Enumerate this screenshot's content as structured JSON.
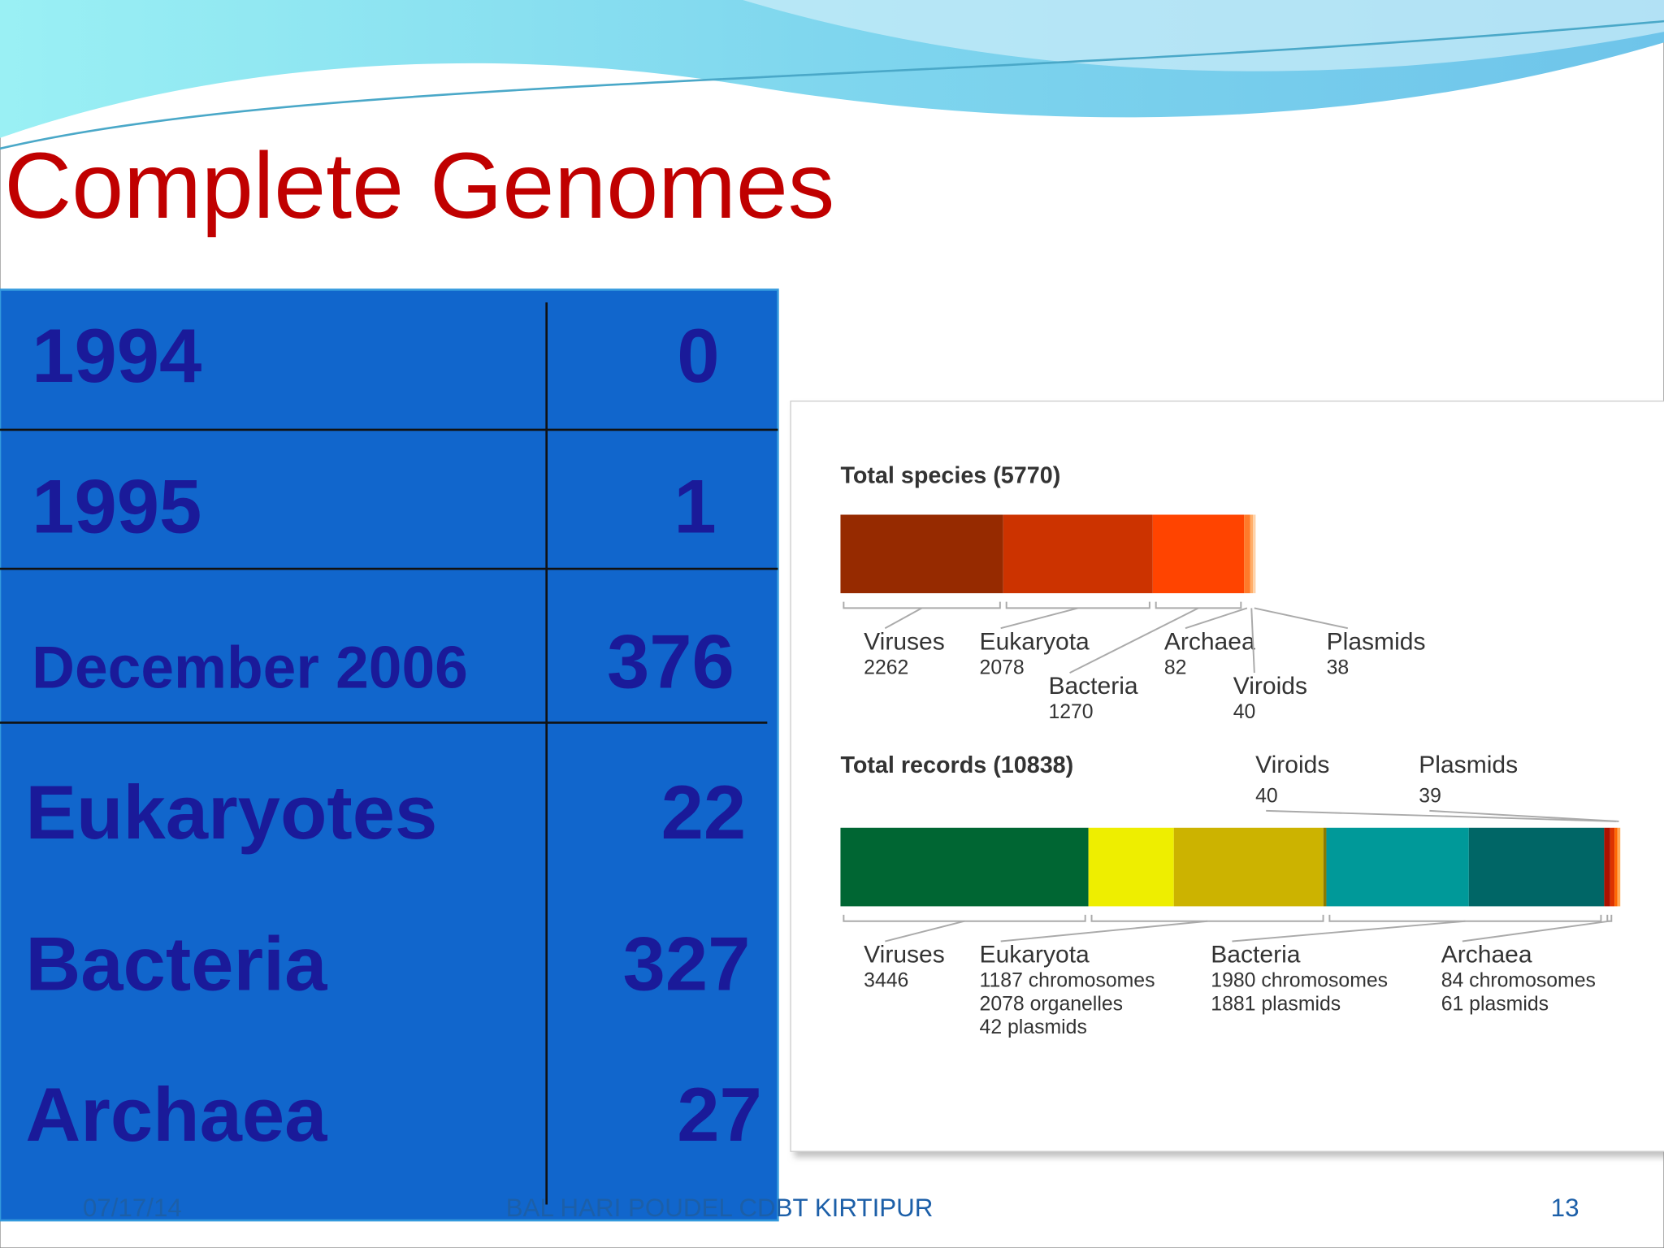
{
  "title": "Complete Genomes",
  "table": {
    "rows": [
      [
        "1994",
        "0"
      ],
      [
        "1995",
        "1"
      ],
      [
        "December 2006",
        "376"
      ],
      [
        "Eukaryotes",
        "22"
      ],
      [
        "Bacteria",
        "327"
      ],
      [
        "Archaea",
        "27"
      ]
    ]
  },
  "figure": {
    "species": {
      "heading": "Total species (5770)",
      "groups": [
        {
          "name": "Viruses",
          "parts": [
            {
              "value": 2262,
              "color": "#962a00"
            }
          ]
        },
        {
          "name": "Eukaryota",
          "parts": [
            {
              "value": 2078,
              "color": "#cc3300"
            }
          ]
        },
        {
          "name": "Bacteria",
          "parts": [
            {
              "value": 1270,
              "color": "#ff4400"
            }
          ]
        },
        {
          "name": "Archaea",
          "parts": [
            {
              "value": 82,
              "color": "#ff7a2a"
            }
          ]
        },
        {
          "name": "Viroids",
          "parts": [
            {
              "value": 40,
              "color": "#ffae6a"
            }
          ]
        },
        {
          "name": "Plasmids",
          "parts": [
            {
              "value": 38,
              "color": "#ffd2a8"
            }
          ]
        }
      ]
    },
    "records": {
      "heading": "Total records (10838)",
      "groups": [
        {
          "name": "Viruses",
          "parts": [
            {
              "value": 3446,
              "color": "#006633"
            }
          ]
        },
        {
          "name": "Eukaryota",
          "parts": [
            {
              "value": 1187,
              "label": "1187 chromosomes",
              "color": "#eeee00"
            },
            {
              "value": 2078,
              "label": "2078 organelles",
              "color": "#ccb300"
            },
            {
              "value": 42,
              "label": "42 plasmids",
              "color": "#8a7a00"
            }
          ]
        },
        {
          "name": "Bacteria",
          "parts": [
            {
              "value": 1980,
              "label": "1980 chromosomes",
              "color": "#009999"
            },
            {
              "value": 1881,
              "label": "1881 plasmids",
              "color": "#006666"
            }
          ]
        },
        {
          "name": "Archaea",
          "parts": [
            {
              "value": 84,
              "label": "84 chromosomes",
              "color": "#aa1100"
            },
            {
              "value": 61,
              "label": "61 plasmids",
              "color": "#dd3300"
            }
          ]
        },
        {
          "name": "Viroids",
          "parts": [
            {
              "value": 40,
              "color": "#ff6600"
            }
          ]
        },
        {
          "name": "Plasmids",
          "parts": [
            {
              "value": 39,
              "color": "#ffaa55"
            }
          ]
        }
      ]
    }
  },
  "footer": {
    "date": "07/17/14",
    "author": "BAL HARI POUDEL CDBT KIRTIPUR",
    "page": "13"
  }
}
